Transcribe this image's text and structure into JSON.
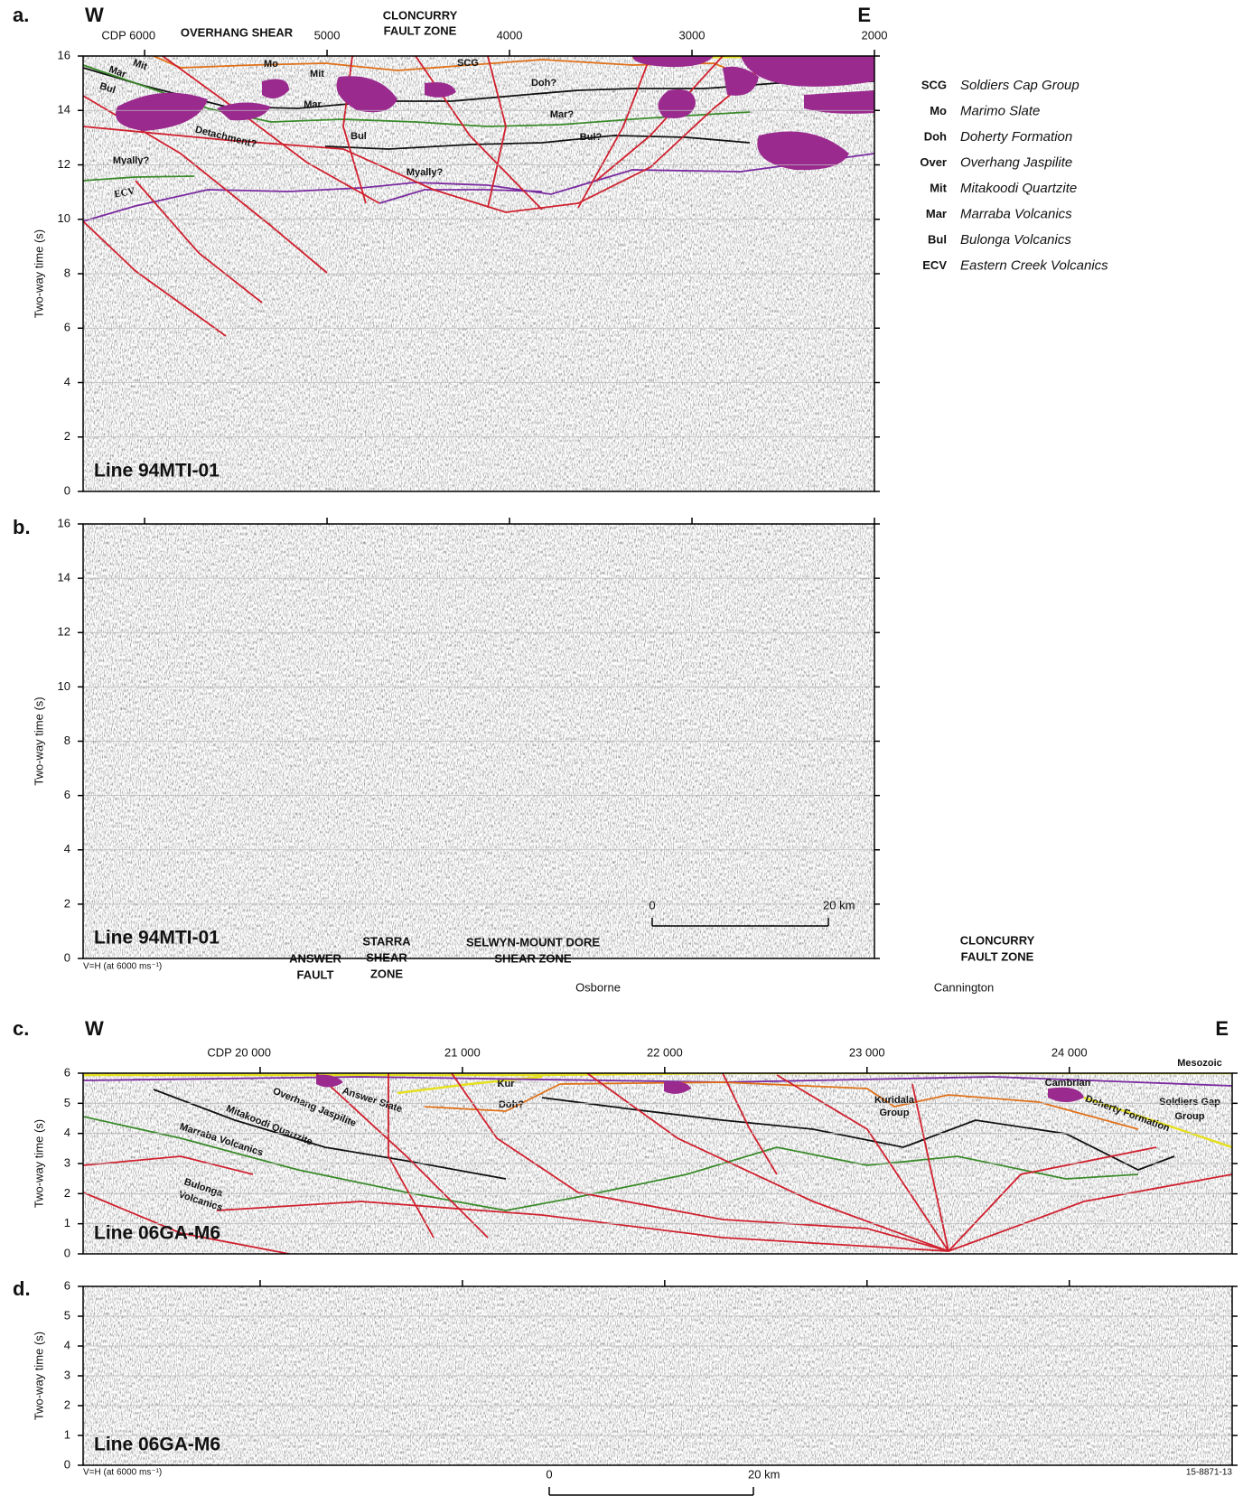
{
  "panels": [
    {
      "label": "a.",
      "west": "W",
      "east": "E",
      "y_axis_label": "Two-way time (s)",
      "ylim": [
        0,
        16
      ],
      "yticks": [
        0,
        2,
        4,
        6,
        8,
        10,
        12,
        14,
        16
      ],
      "cdp_lim": [
        6337,
        2000
      ],
      "cdp_ticks": [
        {
          "value": 6000,
          "label": "CDP 6000"
        },
        5000,
        4000,
        3000,
        2000
      ],
      "line_name": "Line 94MTI-01",
      "annotations": [
        "OVERHANG SHEAR",
        "CLONCURRY",
        "FAULT ZONE",
        "Mo",
        "Mit",
        "Mit",
        "Mar",
        "Mar",
        "Bul",
        "Bul",
        "SCG",
        "Doh?",
        "Mar?",
        "Bul?",
        "Myally?",
        "Myally?",
        "Detachment?",
        "ECV"
      ]
    },
    {
      "label": "b.",
      "y_axis_label": "Two-way time (s)",
      "ylim": [
        0,
        16
      ],
      "yticks": [
        0,
        2,
        4,
        6,
        8,
        10,
        12,
        14,
        16
      ],
      "line_name": "Line 94MTI-01",
      "scale_bar": [
        0,
        {
          "value": 20,
          "label": "20 km"
        }
      ],
      "footnote": "V=H (at 6000 ms⁻¹)"
    },
    {
      "label": "c.",
      "west": "W",
      "east": "E",
      "y_axis_label": "Two-way time (s)",
      "ylim": [
        0,
        6
      ],
      "yticks": [
        0,
        1,
        2,
        3,
        4,
        5,
        6
      ],
      "cdp_lim": [
        19125,
        24805
      ],
      "cdp_ticks": [
        {
          "value": 20000,
          "label": "CDP 20 000"
        },
        {
          "value": 21000,
          "label": "21 000"
        },
        {
          "value": 22000,
          "label": "22 000"
        },
        {
          "value": 23000,
          "label": "23 000"
        },
        {
          "value": 24000,
          "label": "24 000"
        }
      ],
      "line_name": "Line 06GA-M6",
      "annotations": [
        "ANSWER",
        "FAULT",
        "STARRA",
        "SHEAR",
        "ZONE",
        "SELWYN-MOUNT DORE",
        "SHEAR ZONE",
        "CLONCURRY",
        "FAULT ZONE",
        "Osborne",
        "Cannington",
        "Kur",
        "Doh?",
        "Answer Slate",
        "Overhang Jaspilite",
        "Mitakoodi Quartzite",
        "Marraba Volcanics",
        "Bulonga",
        "Volcanics",
        "Kuridala",
        "Group",
        "Cambrian",
        "Mesozoic",
        "Soldiers Gap",
        "Group",
        "Doherty Formation"
      ]
    },
    {
      "label": "d.",
      "y_axis_label": "Two-way time (s)",
      "ylim": [
        0,
        6
      ],
      "yticks": [
        0,
        1,
        2,
        3,
        4,
        5,
        6
      ],
      "line_name": "Line 06GA-M6",
      "scale_bar": [
        0,
        {
          "value": 20,
          "label": "20 km"
        }
      ],
      "footnote": "V=H (at 6000 ms⁻¹)"
    }
  ],
  "legend": [
    {
      "abbr": "SCG",
      "name": "Soldiers Cap Group"
    },
    {
      "abbr": "Mo",
      "name": "Marimo Slate"
    },
    {
      "abbr": "Doh",
      "name": "Doherty Formation"
    },
    {
      "abbr": "Over",
      "name": "Overhang Jaspilite"
    },
    {
      "abbr": "Mit",
      "name": "Mitakoodi Quartzite"
    },
    {
      "abbr": "Mar",
      "name": "Marraba Volcanics"
    },
    {
      "abbr": "Bul",
      "name": "Bulonga Volcanics"
    },
    {
      "abbr": "ECV",
      "name": "Eastern Creek Volcanics"
    }
  ],
  "figure_id": "15-8871-13"
}
